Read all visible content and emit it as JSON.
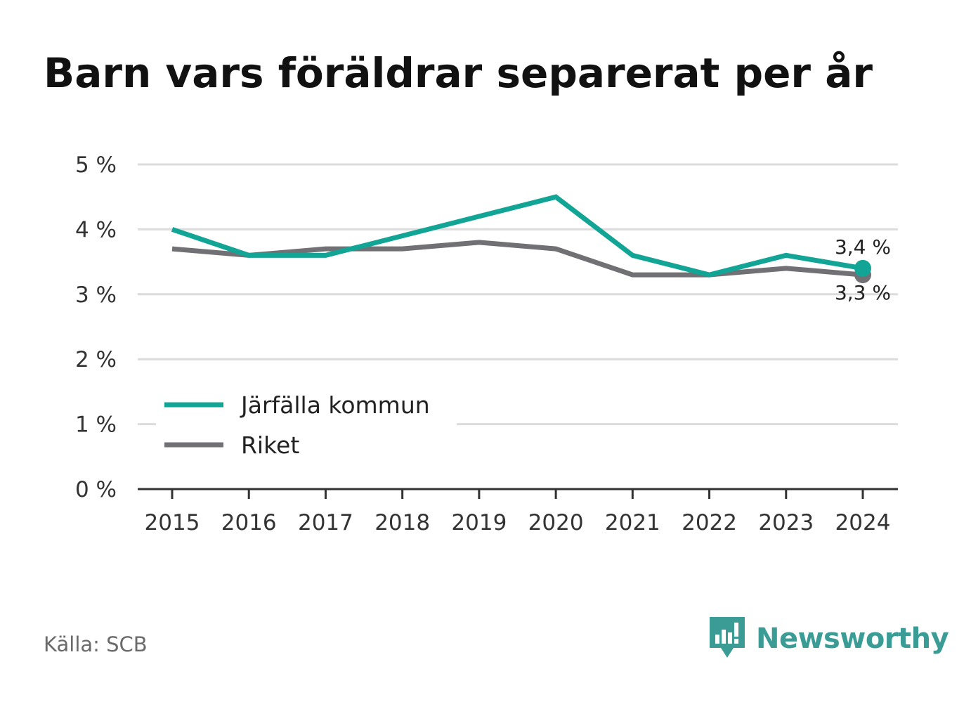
{
  "title": "Barn vars föräldrar separerat per år",
  "source": "Källa: SCB",
  "brand": {
    "name": "Newsworthy",
    "icon": "newsworthy-logo-icon",
    "color": "#3a9c94"
  },
  "chart_data": {
    "type": "line",
    "title": "Barn vars föräldrar separerat per år",
    "x": [
      "2015",
      "2016",
      "2017",
      "2018",
      "2019",
      "2020",
      "2021",
      "2022",
      "2023",
      "2024"
    ],
    "series": [
      {
        "name": "Järfälla kommun",
        "color": "#12a596",
        "values": [
          4.0,
          3.6,
          3.6,
          3.9,
          4.2,
          4.5,
          3.6,
          3.3,
          3.6,
          3.4
        ]
      },
      {
        "name": "Riket",
        "color": "#717175",
        "values": [
          3.7,
          3.6,
          3.7,
          3.7,
          3.8,
          3.7,
          3.3,
          3.3,
          3.4,
          3.3
        ]
      }
    ],
    "ylim": [
      0,
      5
    ],
    "yticks": [
      0,
      1,
      2,
      3,
      4,
      5
    ],
    "ytick_labels": [
      "0 %",
      "1 %",
      "2 %",
      "3 %",
      "4 %",
      "5 %"
    ],
    "xlabel": "",
    "ylabel": "",
    "grid": true,
    "legend_position": "bottom-left",
    "end_labels": [
      "3,4 %",
      "3,3 %"
    ]
  }
}
